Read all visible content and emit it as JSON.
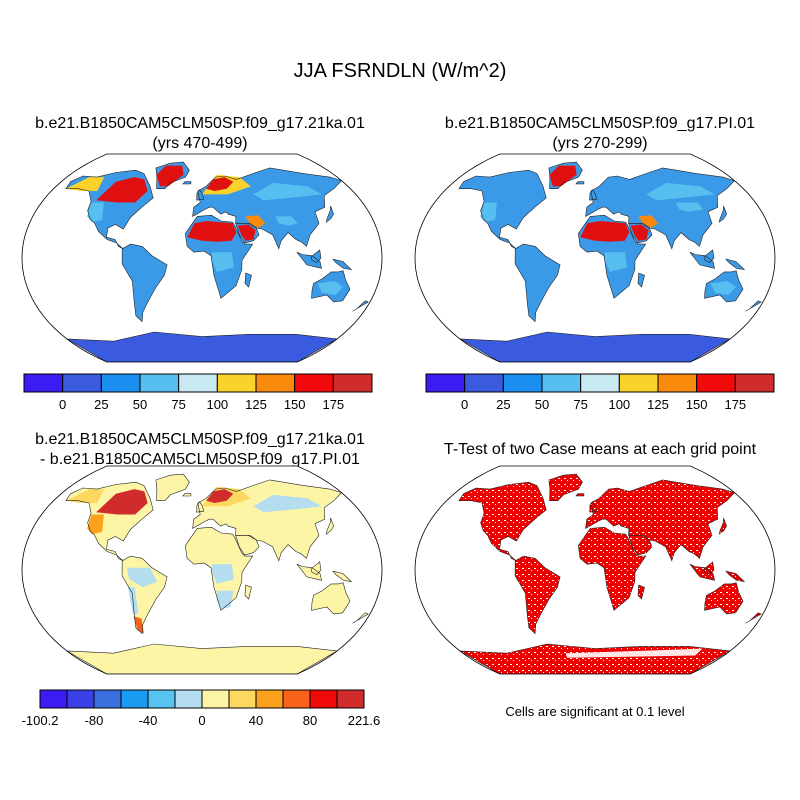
{
  "title": "JJA FSRNDLN (W/m^2)",
  "panels": [
    {
      "id": "case1",
      "title_line1": "b.e21.B1850CAM5CLM50SP.f09_g17.21ka.01",
      "title_line2": "(yrs 470-499)"
    },
    {
      "id": "case2",
      "title_line1": "b.e21.B1850CAM5CLM50SP.f09_g17.PI.01",
      "title_line2": "(yrs 270-299)"
    },
    {
      "id": "diff",
      "title_line1": "b.e21.B1850CAM5CLM50SP.f09_g17.21ka.01",
      "title_line2": "- b.e21.B1850CAM5CLM50SP.f09_g17.PI.01"
    },
    {
      "id": "ttest",
      "title_line1": "T-Test of two Case means at each grid point",
      "title_line2": ""
    }
  ],
  "colorbars": {
    "main": {
      "colors": [
        "#3b1cf2",
        "#3a5be0",
        "#1a8ff0",
        "#56bff0",
        "#c8e8f2",
        "#fbd22a",
        "#f98a0c",
        "#f20a0a",
        "#d12c2c"
      ],
      "labels": [
        "0",
        "25",
        "50",
        "75",
        "100",
        "125",
        "150",
        "175"
      ]
    },
    "diff": {
      "colors": [
        "#3b1cf2",
        "#3a3fe6",
        "#3a6fe0",
        "#1a9af0",
        "#56c3f0",
        "#b4ddf0",
        "#fcf5a6",
        "#fdd860",
        "#fba21c",
        "#f9621a",
        "#f00a0a",
        "#d12c2c"
      ],
      "labels": [
        "-100.2",
        "-80",
        "-40",
        "0",
        "40",
        "80",
        "221.6"
      ],
      "label_boundaries": [
        0,
        2,
        4,
        6,
        8,
        10,
        12
      ]
    }
  },
  "note": "Cells are significant at 0.1 level",
  "map_colors": {
    "ocean": "#ffffff",
    "case_land_base": "#3a9ae8",
    "case_land_light": "#56bff0",
    "case_desert": "#e01010",
    "case_bright": "#fbd22a",
    "case_ice": "#3a5be0",
    "diff_land_base": "#fcf5a6",
    "diff_land_light": "#b4ddf0",
    "diff_hot": "#d12c2c",
    "diff_warm": "#f9621a",
    "sig": "#ee0000"
  }
}
